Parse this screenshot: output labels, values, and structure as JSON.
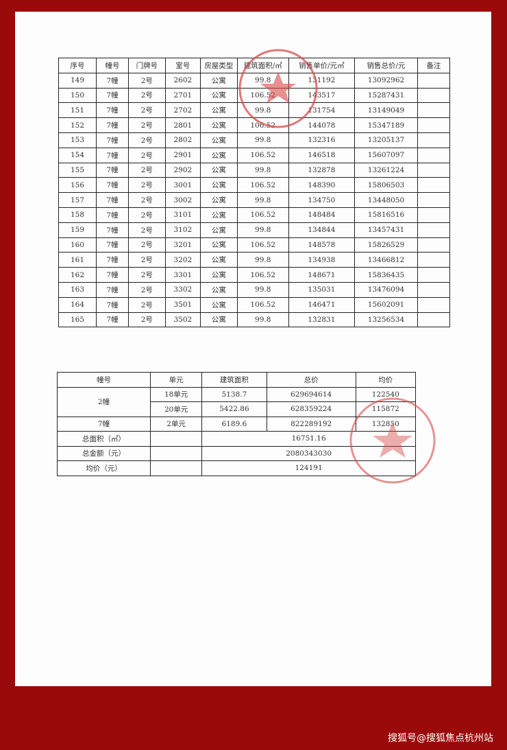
{
  "table1": {
    "headers": [
      "序号",
      "幢号",
      "门牌号",
      "室号",
      "房屋类型",
      "建筑面积/㎡",
      "销售单价/元㎡",
      "销售总价/元",
      "备注"
    ],
    "rows": [
      [
        "149",
        "7幢",
        "2号",
        "2602",
        "公寓",
        "99.8",
        "131192",
        "13092962",
        ""
      ],
      [
        "150",
        "7幢",
        "2号",
        "2701",
        "公寓",
        "106.52",
        "143517",
        "15287431",
        ""
      ],
      [
        "151",
        "7幢",
        "2号",
        "2702",
        "公寓",
        "99.8",
        "131754",
        "13149049",
        ""
      ],
      [
        "152",
        "7幢",
        "2号",
        "2801",
        "公寓",
        "106.52",
        "144078",
        "15347189",
        ""
      ],
      [
        "153",
        "7幢",
        "2号",
        "2802",
        "公寓",
        "99.8",
        "132316",
        "13205137",
        ""
      ],
      [
        "154",
        "7幢",
        "2号",
        "2901",
        "公寓",
        "106.52",
        "146518",
        "15607097",
        ""
      ],
      [
        "155",
        "7幢",
        "2号",
        "2902",
        "公寓",
        "99.8",
        "132878",
        "13261224",
        ""
      ],
      [
        "156",
        "7幢",
        "2号",
        "3001",
        "公寓",
        "106.52",
        "148390",
        "15806503",
        ""
      ],
      [
        "157",
        "7幢",
        "2号",
        "3002",
        "公寓",
        "99.8",
        "134750",
        "13448050",
        ""
      ],
      [
        "158",
        "7幢",
        "2号",
        "3101",
        "公寓",
        "106.52",
        "148484",
        "15816516",
        ""
      ],
      [
        "159",
        "7幢",
        "2号",
        "3102",
        "公寓",
        "99.8",
        "134844",
        "13457431",
        ""
      ],
      [
        "160",
        "7幢",
        "2号",
        "3201",
        "公寓",
        "106.52",
        "148578",
        "15826529",
        ""
      ],
      [
        "161",
        "7幢",
        "2号",
        "3202",
        "公寓",
        "99.8",
        "134938",
        "13466812",
        ""
      ],
      [
        "162",
        "7幢",
        "2号",
        "3301",
        "公寓",
        "106.52",
        "148671",
        "15836435",
        ""
      ],
      [
        "163",
        "7幢",
        "2号",
        "3302",
        "公寓",
        "99.8",
        "135031",
        "13476094",
        ""
      ],
      [
        "164",
        "7幢",
        "2号",
        "3501",
        "公寓",
        "106.52",
        "146471",
        "15602091",
        ""
      ],
      [
        "165",
        "7幢",
        "2号",
        "3502",
        "公寓",
        "99.8",
        "132831",
        "13256534",
        ""
      ]
    ]
  },
  "table2": {
    "headers": [
      "幢号",
      "单元",
      "建筑面积",
      "总价",
      "均价"
    ],
    "b2": {
      "label": "2幢",
      "rows": [
        [
          "18单元",
          "5138.7",
          "629694614",
          "122540"
        ],
        [
          "20单元",
          "5422.86",
          "628359224",
          "115872"
        ]
      ]
    },
    "b7": [
      "7幢",
      "2单元",
      "6189.6",
      "822289192",
      "132850"
    ],
    "total_area": {
      "label": "总面积（㎡）",
      "value": "16751.16"
    },
    "total_amount": {
      "label": "总金额（元）",
      "value": "2080343030"
    },
    "avg_price": {
      "label": "均价（元）",
      "value": "124191"
    }
  },
  "watermark": "搜狐号@搜狐焦点杭州站",
  "colors": {
    "border": "#9a0a0a",
    "stamp": "#d84a4a"
  }
}
